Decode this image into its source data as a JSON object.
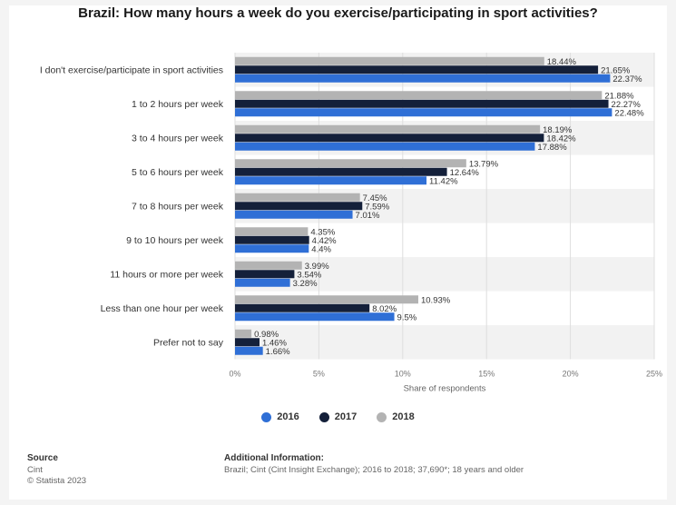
{
  "title": "Brazil: How many hours a week do you exercise/participating in sport activities?",
  "colors": {
    "2016": "#2f6fd6",
    "2017": "#14203a",
    "2018": "#b3b3b3"
  },
  "chart_data": {
    "type": "bar",
    "orientation": "horizontal",
    "title": "Brazil: How many hours a week do you exercise/participating in sport activities?",
    "xlabel": "Share of respondents",
    "ylabel": "",
    "xlim": [
      0,
      25
    ],
    "ticks": [
      "0%",
      "5%",
      "10%",
      "15%",
      "20%",
      "25%"
    ],
    "grid": true,
    "legend_position": "bottom",
    "categories": [
      "I don't exercise/participate in sport activities",
      "1 to 2 hours per week",
      "3 to 4 hours per week",
      "5 to 6 hours per week",
      "7 to 8 hours per week",
      "9 to 10 hours per week",
      "11 hours or more per week",
      "Less than one hour per week",
      "Prefer not to say"
    ],
    "series": [
      {
        "name": "2018",
        "values": [
          18.44,
          21.88,
          18.19,
          13.79,
          7.45,
          4.35,
          3.99,
          10.93,
          0.98
        ],
        "labels": [
          "18.44%",
          "21.88%",
          "18.19%",
          "13.79%",
          "7.45%",
          "4.35%",
          "3.99%",
          "10.93%",
          "0.98%"
        ]
      },
      {
        "name": "2017",
        "values": [
          21.65,
          22.27,
          18.42,
          12.64,
          7.59,
          4.42,
          3.54,
          8.02,
          1.46
        ],
        "labels": [
          "21.65%",
          "22.27%",
          "18.42%",
          "12.64%",
          "7.59%",
          "4.42%",
          "3.54%",
          "8.02%",
          "1.46%"
        ]
      },
      {
        "name": "2016",
        "values": [
          22.37,
          22.48,
          17.88,
          11.42,
          7.01,
          4.4,
          3.28,
          9.5,
          1.66
        ],
        "labels": [
          "22.37%",
          "22.48%",
          "17.88%",
          "11.42%",
          "7.01%",
          "4.4%",
          "3.28%",
          "9.5%",
          "1.66%"
        ]
      }
    ]
  },
  "legend": [
    {
      "label": "2016",
      "color": "#2f6fd6"
    },
    {
      "label": "2017",
      "color": "#14203a"
    },
    {
      "label": "2018",
      "color": "#b3b3b3"
    }
  ],
  "footer": {
    "source_head": "Source",
    "source_line1": "Cint",
    "source_line2": "© Statista 2023",
    "info_head": "Additional Information:",
    "info_text": "Brazil; Cint (Cint Insight Exchange); 2016 to 2018; 37,690*; 18 years and older"
  }
}
